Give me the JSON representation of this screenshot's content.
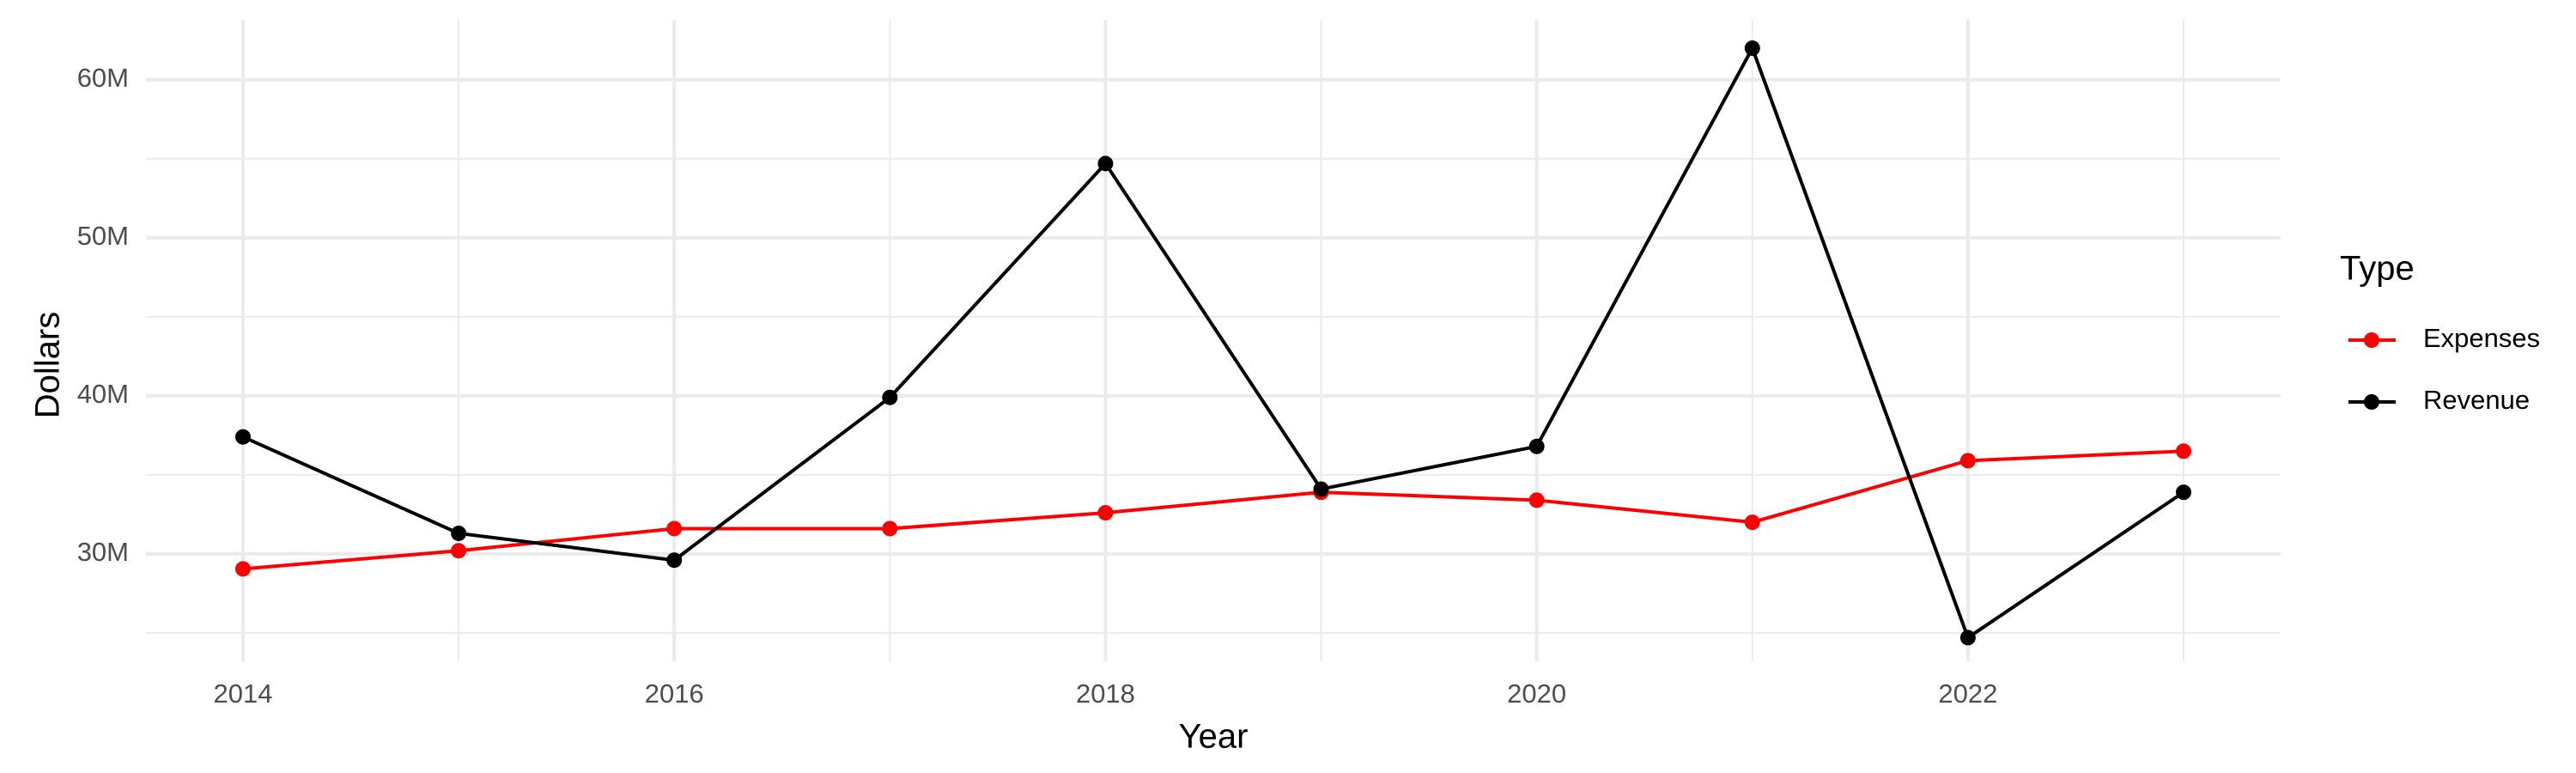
{
  "chart_data": {
    "type": "line",
    "x_label": "Year",
    "y_label": "Dollars",
    "legend_title": "Type",
    "x": [
      2014,
      2015,
      2016,
      2017,
      2018,
      2019,
      2020,
      2021,
      2022,
      2023
    ],
    "series": [
      {
        "name": "Expenses",
        "color": "#ff0000",
        "values": [
          29050000,
          30200000,
          31600000,
          31600000,
          32600000,
          33900000,
          33400000,
          32000000,
          35900000,
          36500000
        ]
      },
      {
        "name": "Revenue",
        "color": "#000000",
        "values": [
          37400000,
          31300000,
          29600000,
          39900000,
          54700000,
          34100000,
          36800000,
          62000000,
          24700000,
          33900000
        ]
      }
    ],
    "xlim": [
      2013.55,
      2023.45
    ],
    "ylim": [
      23200000,
      63800000
    ],
    "xticks": [
      2014,
      2016,
      2018,
      2020,
      2022
    ],
    "yticks": [
      {
        "value": 30000000,
        "label": "30M"
      },
      {
        "value": 40000000,
        "label": "40M"
      },
      {
        "value": 50000000,
        "label": "50M"
      },
      {
        "value": 60000000,
        "label": "60M"
      }
    ],
    "xminorticks": [
      2015,
      2017,
      2019,
      2021,
      2023
    ],
    "yminorticks": [
      25000000,
      35000000,
      45000000,
      55000000
    ],
    "grid": true,
    "legend": "right"
  }
}
